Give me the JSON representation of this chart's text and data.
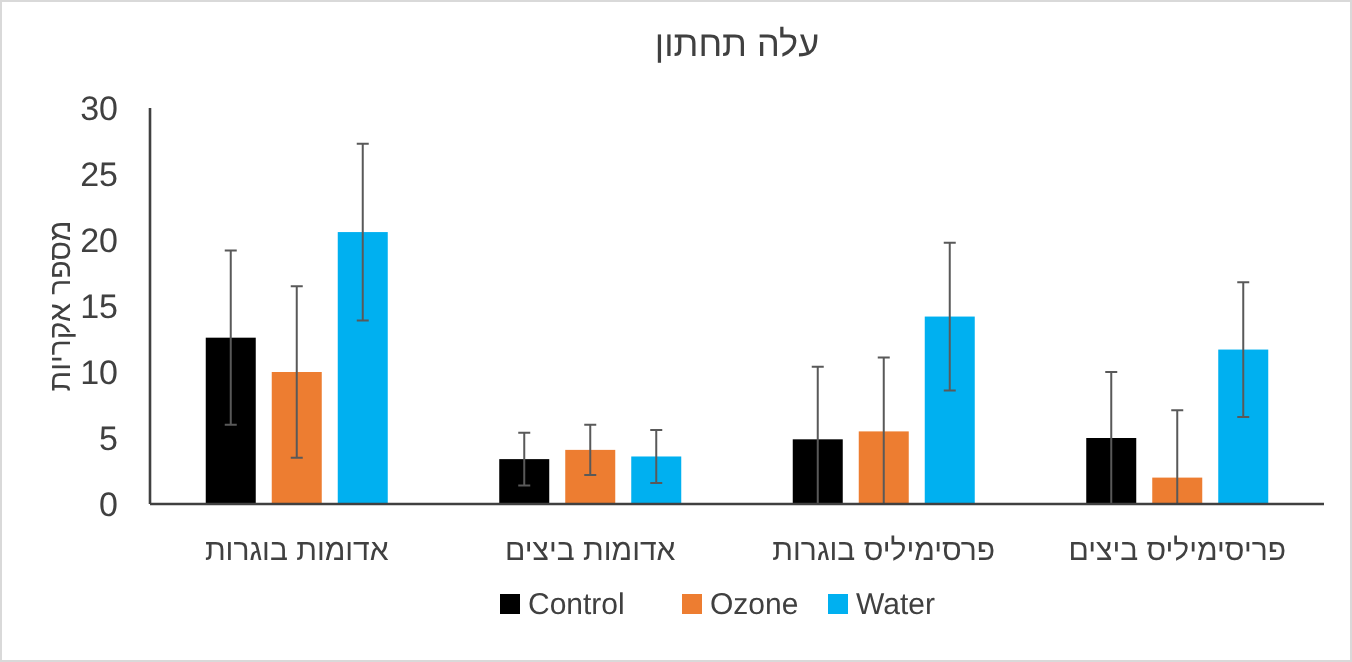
{
  "chart_data": {
    "type": "bar",
    "title": "עלה תחתון",
    "ylabel": "מספר אקריות",
    "categories": [
      "אדומות בוגרות",
      "אדומות ביצים",
      "פרסימיליס בוגרות",
      "פריסימיליס ביצים"
    ],
    "series": [
      {
        "name": "Control",
        "color": "#000000",
        "values": [
          12.6,
          3.4,
          4.9,
          5.0
        ],
        "errors": [
          6.6,
          2.0,
          [
            0,
            10.4
          ],
          5.0
        ]
      },
      {
        "name": "Ozone",
        "color": "#ed7d31",
        "values": [
          10.0,
          4.1,
          5.5,
          2.0
        ],
        "errors": [
          6.5,
          1.9,
          [
            0,
            11.1
          ],
          [
            0,
            7.1
          ]
        ]
      },
      {
        "name": "Water",
        "color": "#00b0f0",
        "values": [
          20.6,
          3.6,
          14.2,
          11.7
        ],
        "errors": [
          6.7,
          2.0,
          5.6,
          5.1
        ]
      }
    ],
    "ylim": [
      0,
      30
    ],
    "yticks": [
      0,
      5,
      10,
      15,
      20,
      25,
      30
    ],
    "legend": "bottom"
  }
}
